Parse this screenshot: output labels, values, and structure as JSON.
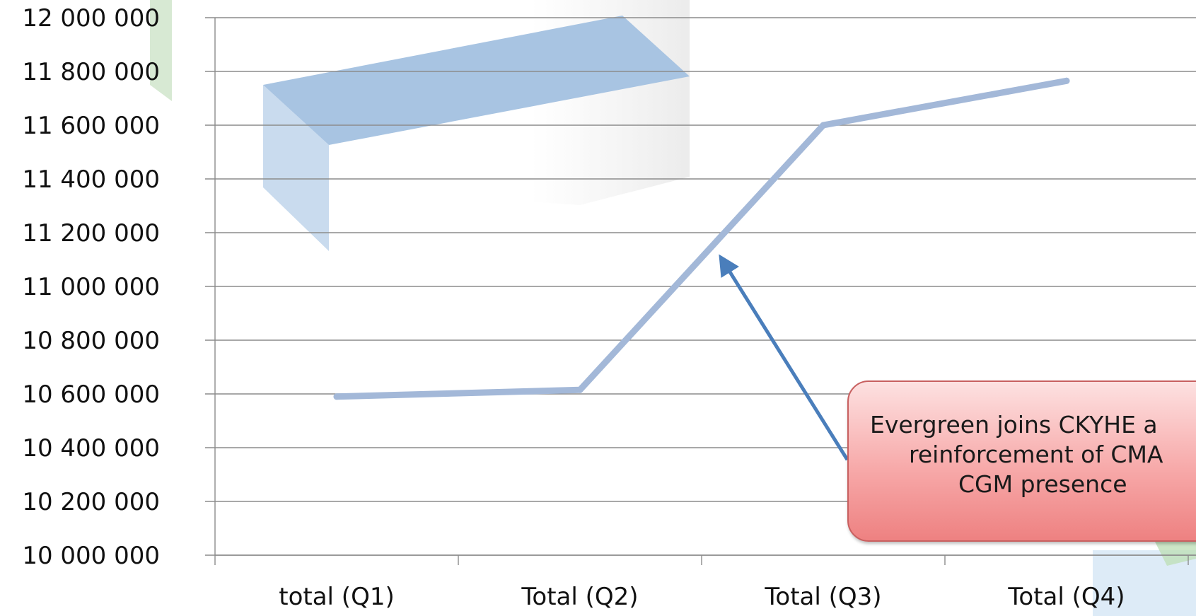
{
  "chart_data": {
    "type": "line",
    "categories": [
      "total (Q1)",
      "Total (Q2)",
      "Total (Q3)",
      "Total (Q4)"
    ],
    "series": [
      {
        "values": [
          10590000,
          10615000,
          11600000,
          11765000
        ],
        "color": "#a3b8d8"
      }
    ],
    "ylim": [
      10000000,
      12000000
    ],
    "yticks": [
      10000000,
      10200000,
      10400000,
      10600000,
      10800000,
      11000000,
      11200000,
      11400000,
      11600000,
      11800000,
      12000000
    ],
    "ytick_labels": [
      "10 000 000",
      "10 200 000",
      "10 400 000",
      "10 600 000",
      "10 800 000",
      "11 000 000",
      "11 200 000",
      "11 400 000",
      "11 600 000",
      "11 800 000",
      "12 000 000"
    ],
    "grid": true,
    "grid_color": "#8c8c8c",
    "annotation": {
      "lines": [
        "Evergreen joins CKYHE a",
        "reinforcement of CMA",
        "CGM presence"
      ],
      "arrow_color": "#4a7ebb",
      "points_at": {
        "x": "Total (Q3)",
        "y": 11140000
      }
    }
  }
}
